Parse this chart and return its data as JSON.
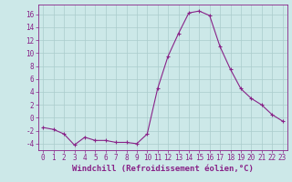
{
  "x": [
    0,
    1,
    2,
    3,
    4,
    5,
    6,
    7,
    8,
    9,
    10,
    11,
    12,
    13,
    14,
    15,
    16,
    17,
    18,
    19,
    20,
    21,
    22,
    23
  ],
  "y": [
    -1.5,
    -1.8,
    -2.5,
    -4.2,
    -3.0,
    -3.5,
    -3.5,
    -3.8,
    -3.8,
    -4.0,
    -2.5,
    4.5,
    9.5,
    13.0,
    16.2,
    16.5,
    15.8,
    11.0,
    7.5,
    4.5,
    3.0,
    2.0,
    0.5,
    -0.5
  ],
  "line_color": "#882288",
  "marker": "+",
  "marker_color": "#882288",
  "bg_color": "#cce8e8",
  "grid_color": "#aacccc",
  "axis_color": "#882288",
  "tick_color": "#882288",
  "xlabel": "Windchill (Refroidissement éolien,°C)",
  "xlabel_color": "#882288",
  "ylim": [
    -5,
    17.5
  ],
  "yticks": [
    -4,
    -2,
    0,
    2,
    4,
    6,
    8,
    10,
    12,
    14,
    16
  ],
  "xticks": [
    0,
    1,
    2,
    3,
    4,
    5,
    6,
    7,
    8,
    9,
    10,
    11,
    12,
    13,
    14,
    15,
    16,
    17,
    18,
    19,
    20,
    21,
    22,
    23
  ],
  "tick_fontsize": 5.5,
  "label_fontsize": 6.5
}
